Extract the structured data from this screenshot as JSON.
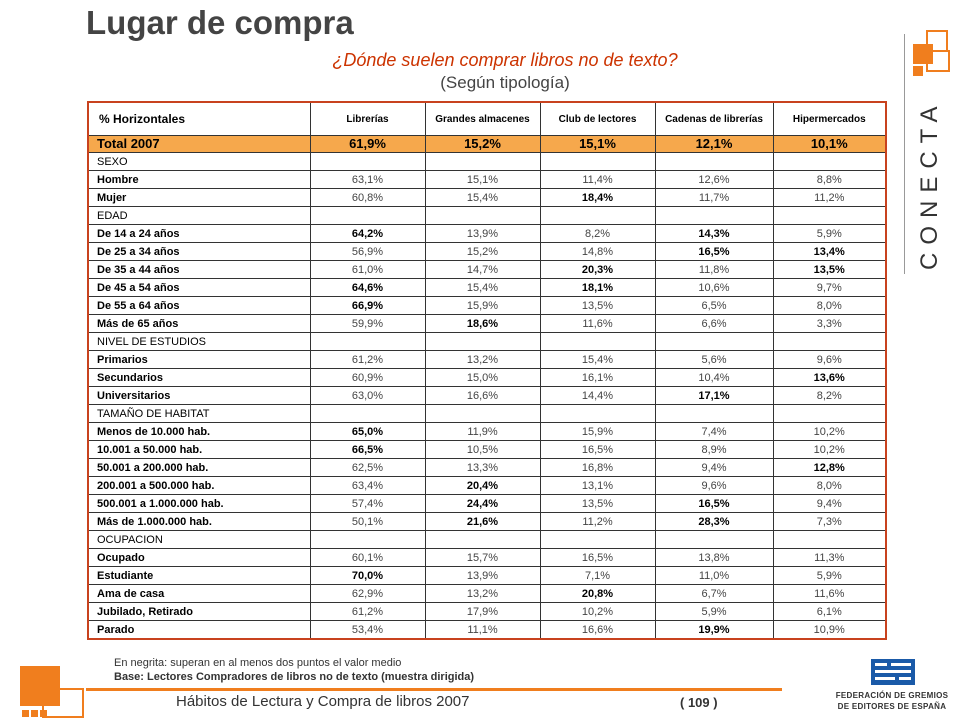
{
  "header": {
    "title": "Lugar de compra",
    "question": "¿Dónde suelen comprar libros no de texto?",
    "subquestion": "(Según tipología)"
  },
  "logo": {
    "text": "CONECTA",
    "accent": "#f07e1e"
  },
  "table": {
    "columns": [
      "% Horizontales",
      "Librerías",
      "Grandes almacenes",
      "Club de lectores",
      "Cadenas de librerías",
      "Hipermercados"
    ],
    "total": {
      "label": "Total 2007",
      "values": [
        "61,9%",
        "15,2%",
        "15,1%",
        "12,1%",
        "10,1%"
      ]
    },
    "rows": [
      {
        "type": "section",
        "label": "SEXO"
      },
      {
        "type": "row",
        "label": "Hombre",
        "values": [
          "63,1%",
          "15,1%",
          "11,4%",
          "12,6%",
          "8,8%"
        ],
        "bold": []
      },
      {
        "type": "row",
        "label": "Mujer",
        "values": [
          "60,8%",
          "15,4%",
          "18,4%",
          "11,7%",
          "11,2%"
        ],
        "bold": [
          2
        ]
      },
      {
        "type": "section",
        "label": "EDAD"
      },
      {
        "type": "row",
        "label": "De 14 a 24 años",
        "values": [
          "64,2%",
          "13,9%",
          "8,2%",
          "14,3%",
          "5,9%"
        ],
        "bold": [
          0,
          3
        ]
      },
      {
        "type": "row",
        "label": "De 25 a 34 años",
        "values": [
          "56,9%",
          "15,2%",
          "14,8%",
          "16,5%",
          "13,4%"
        ],
        "bold": [
          3,
          4
        ]
      },
      {
        "type": "row",
        "label": "De 35 a 44 años",
        "values": [
          "61,0%",
          "14,7%",
          "20,3%",
          "11,8%",
          "13,5%"
        ],
        "bold": [
          2,
          4
        ]
      },
      {
        "type": "row",
        "label": "De 45 a 54 años",
        "values": [
          "64,6%",
          "15,4%",
          "18,1%",
          "10,6%",
          "9,7%"
        ],
        "bold": [
          0,
          2
        ]
      },
      {
        "type": "row",
        "label": "De 55 a 64 años",
        "values": [
          "66,9%",
          "15,9%",
          "13,5%",
          "6,5%",
          "8,0%"
        ],
        "bold": [
          0
        ]
      },
      {
        "type": "row",
        "label": "Más de 65 años",
        "values": [
          "59,9%",
          "18,6%",
          "11,6%",
          "6,6%",
          "3,3%"
        ],
        "bold": [
          1
        ]
      },
      {
        "type": "section",
        "label": "NIVEL DE ESTUDIOS"
      },
      {
        "type": "row",
        "label": "Primarios",
        "values": [
          "61,2%",
          "13,2%",
          "15,4%",
          "5,6%",
          "9,6%"
        ],
        "bold": []
      },
      {
        "type": "row",
        "label": "Secundarios",
        "values": [
          "60,9%",
          "15,0%",
          "16,1%",
          "10,4%",
          "13,6%"
        ],
        "bold": [
          4
        ]
      },
      {
        "type": "row",
        "label": "Universitarios",
        "values": [
          "63,0%",
          "16,6%",
          "14,4%",
          "17,1%",
          "8,2%"
        ],
        "bold": [
          3
        ]
      },
      {
        "type": "section",
        "label": "TAMAÑO DE HABITAT"
      },
      {
        "type": "row",
        "label": "Menos de 10.000 hab.",
        "values": [
          "65,0%",
          "11,9%",
          "15,9%",
          "7,4%",
          "10,2%"
        ],
        "bold": [
          0
        ]
      },
      {
        "type": "row",
        "label": "10.001 a 50.000 hab.",
        "values": [
          "66,5%",
          "10,5%",
          "16,5%",
          "8,9%",
          "10,2%"
        ],
        "bold": [
          0
        ]
      },
      {
        "type": "row",
        "label": "50.001 a 200.000 hab.",
        "values": [
          "62,5%",
          "13,3%",
          "16,8%",
          "9,4%",
          "12,8%"
        ],
        "bold": [
          4
        ]
      },
      {
        "type": "row",
        "label": "200.001 a 500.000 hab.",
        "values": [
          "63,4%",
          "20,4%",
          "13,1%",
          "9,6%",
          "8,0%"
        ],
        "bold": [
          1
        ]
      },
      {
        "type": "row",
        "label": "500.001 a 1.000.000 hab.",
        "values": [
          "57,4%",
          "24,4%",
          "13,5%",
          "16,5%",
          "9,4%"
        ],
        "bold": [
          1,
          3
        ]
      },
      {
        "type": "row",
        "label": "Más de 1.000.000 hab.",
        "values": [
          "50,1%",
          "21,6%",
          "11,2%",
          "28,3%",
          "7,3%"
        ],
        "bold": [
          1,
          3
        ]
      },
      {
        "type": "section",
        "label": "OCUPACION"
      },
      {
        "type": "row",
        "label": "Ocupado",
        "values": [
          "60,1%",
          "15,7%",
          "16,5%",
          "13,8%",
          "11,3%"
        ],
        "bold": []
      },
      {
        "type": "row",
        "label": "Estudiante",
        "values": [
          "70,0%",
          "13,9%",
          "7,1%",
          "11,0%",
          "5,9%"
        ],
        "bold": [
          0
        ]
      },
      {
        "type": "row",
        "label": "Ama de casa",
        "values": [
          "62,9%",
          "13,2%",
          "20,8%",
          "6,7%",
          "11,6%"
        ],
        "bold": [
          2
        ]
      },
      {
        "type": "row",
        "label": "Jubilado, Retirado",
        "values": [
          "61,2%",
          "17,9%",
          "10,2%",
          "5,9%",
          "6,1%"
        ],
        "bold": []
      },
      {
        "type": "row",
        "label": "Parado",
        "values": [
          "53,4%",
          "11,1%",
          "16,6%",
          "19,9%",
          "10,9%"
        ],
        "bold": [
          3
        ]
      }
    ]
  },
  "notes": {
    "line1": "En negrita: superan en al menos dos puntos el valor medio",
    "line2_label": "Base:",
    "line2_text": "Lectores Compradores de libros no de texto (muestra dirigida)"
  },
  "footer": {
    "title": "Hábitos de Lectura y Compra de libros 2007",
    "page": "( 109 )"
  },
  "federacion": {
    "line1": "FEDERACIÓN DE GREMIOS",
    "line2": "DE EDITORES DE ESPAÑA",
    "color": "#1a5aa8"
  }
}
